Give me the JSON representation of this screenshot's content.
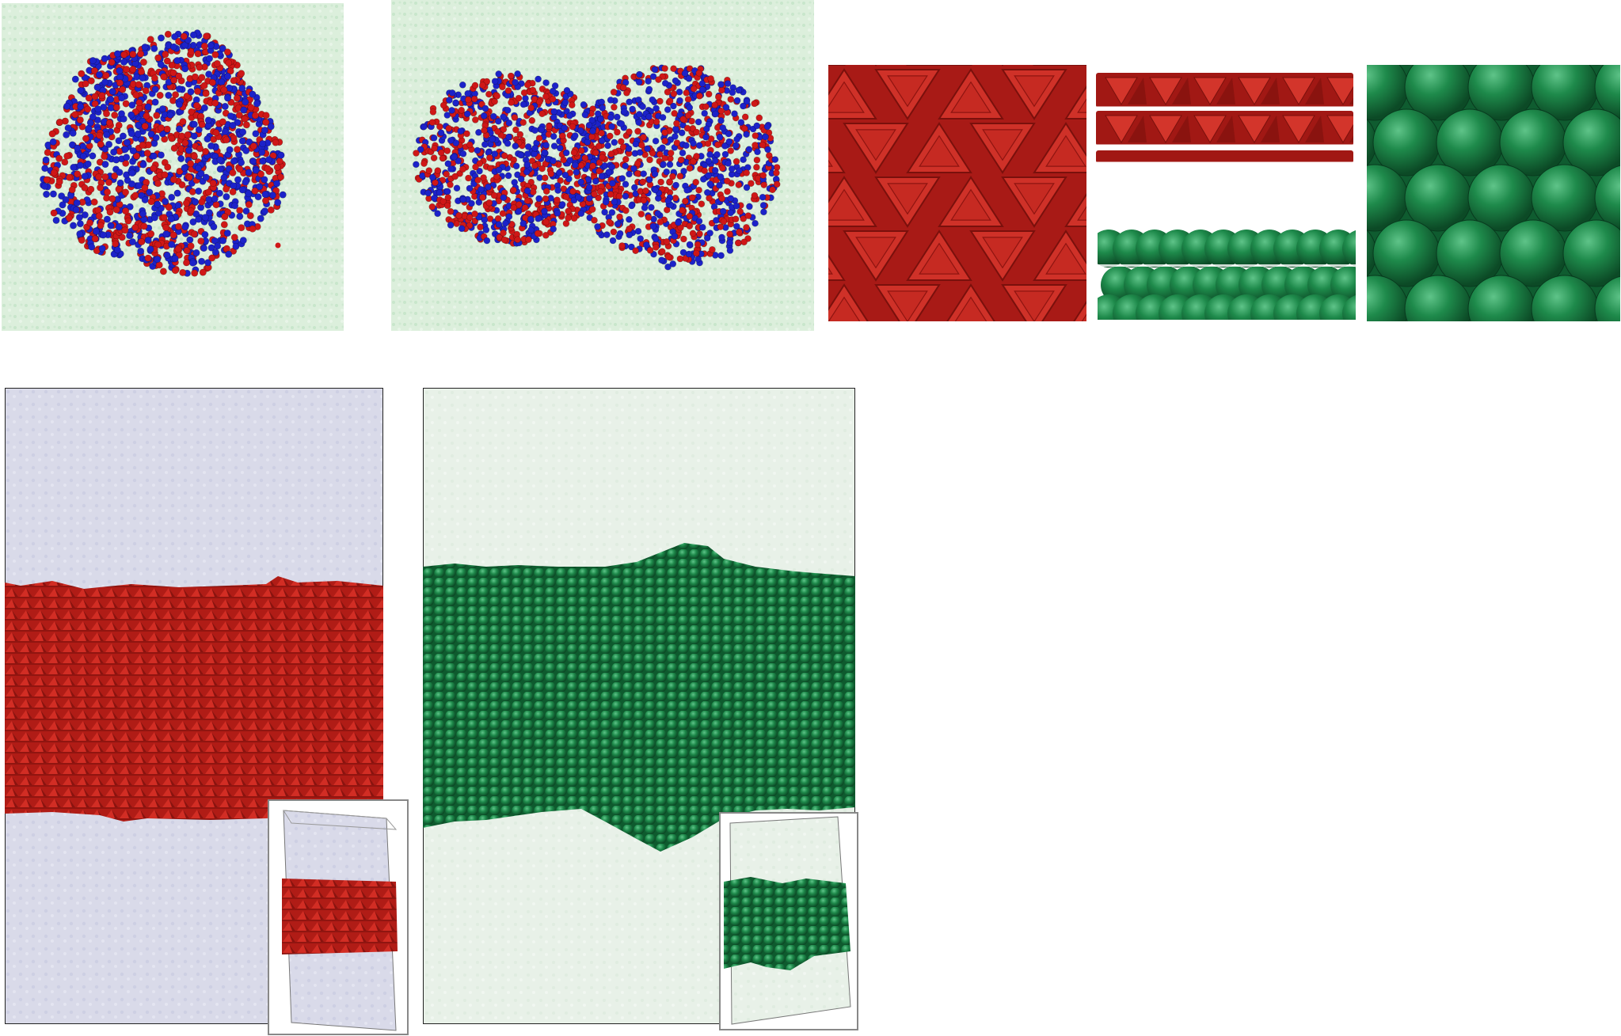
{
  "figure": {
    "panels": [
      {
        "id": "cluster-top-view",
        "kind": "particle-cluster",
        "colors": [
          "#1c22c9",
          "#cf1717"
        ],
        "background": "#d7ecd9"
      },
      {
        "id": "cluster-side-view",
        "kind": "particle-cluster",
        "colors": [
          "#1c22c9",
          "#cf1717"
        ],
        "background": "#d7ecd9"
      },
      {
        "id": "triangular-prism-lattice-top",
        "kind": "lattice",
        "shape": "triangular-prism",
        "color": "#c92a22"
      },
      {
        "id": "triangular-prism-layers-side",
        "kind": "lattice",
        "shape": "triangular-prism",
        "color": "#c92a22"
      },
      {
        "id": "sphere-layers-side",
        "kind": "lattice",
        "shape": "sphere",
        "color": "#1f8a4c"
      },
      {
        "id": "sphere-lattice-top",
        "kind": "lattice",
        "shape": "sphere",
        "color": "#1f8a4c"
      },
      {
        "id": "prism-slab-simulation",
        "kind": "slab",
        "shape": "triangular-prism",
        "color": "#b8211b",
        "background": "#dcdcec"
      },
      {
        "id": "sphere-slab-simulation",
        "kind": "slab",
        "shape": "sphere",
        "color": "#1f8a4c",
        "background": "#e6f0e6"
      }
    ],
    "insets": [
      {
        "id": "prism-slab-3d-inset",
        "color": "#b8211b"
      },
      {
        "id": "sphere-slab-3d-inset",
        "color": "#1f8a4c"
      }
    ]
  }
}
